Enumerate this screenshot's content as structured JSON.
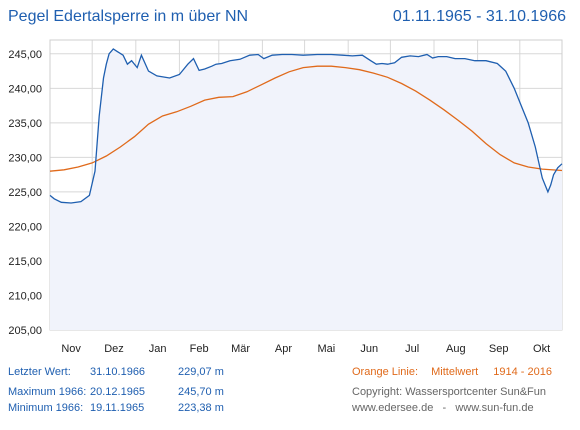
{
  "header": {
    "title": "Pegel Edertalsperre in m über NN",
    "period": "01.11.1965 - 31.10.1966"
  },
  "stats": {
    "last": {
      "label": "Letzter Wert:",
      "date": "31.10.1966",
      "value": "229,07 m"
    },
    "max": {
      "label": "Maximum 1966:",
      "date": "20.12.1965",
      "value": "245,70 m"
    },
    "min": {
      "label": "Minimum  1966:",
      "date": "19.11.1965",
      "value": "223,38 m"
    }
  },
  "legend": {
    "label": "Orange Linie:",
    "text": "Mittelwert",
    "range": "1914 - 2016"
  },
  "copyright": "Copyright: Wassersportcenter Sun&Fun",
  "websites": "www.edersee.de   -   www.sun-fun.de",
  "colors": {
    "level_line": "#1f5fb0",
    "mean_line": "#e06a1b",
    "fill": "#f1f3fb",
    "grid": "#d8d8d8"
  },
  "chart_data": {
    "type": "line",
    "ylim": [
      205,
      247
    ],
    "yticks": [
      "205,00",
      "210,00",
      "215,00",
      "220,00",
      "225,00",
      "230,00",
      "235,00",
      "240,00",
      "245,00"
    ],
    "ytick_values": [
      205,
      210,
      215,
      220,
      225,
      230,
      235,
      240,
      245
    ],
    "months": [
      "Nov",
      "Dez",
      "Jan",
      "Feb",
      "Mär",
      "Apr",
      "Mai",
      "Jun",
      "Jul",
      "Aug",
      "Sep",
      "Okt"
    ],
    "days_in_year": 365,
    "series": [
      {
        "key": "level",
        "day": [
          0,
          3,
          8,
          15,
          22,
          28,
          32,
          35,
          38,
          40,
          42,
          45,
          48,
          52,
          55,
          58,
          62,
          65,
          70,
          76,
          85,
          92,
          98,
          102,
          106,
          110,
          115,
          118,
          122,
          128,
          135,
          142,
          148,
          152,
          158,
          165,
          172,
          180,
          190,
          200,
          208,
          215,
          222,
          228,
          232,
          236,
          240,
          245,
          250,
          256,
          262,
          268,
          272,
          276,
          282,
          288,
          295,
          302,
          310,
          318,
          324,
          330,
          335,
          340,
          345,
          350,
          354,
          356,
          358,
          361,
          364
        ],
        "value": [
          224.5,
          224.0,
          223.5,
          223.4,
          223.6,
          224.5,
          228.0,
          236.0,
          241.5,
          243.5,
          245.0,
          245.7,
          245.3,
          244.8,
          243.5,
          244.0,
          243.0,
          244.8,
          242.5,
          241.8,
          241.5,
          242.0,
          243.5,
          244.3,
          242.6,
          242.8,
          243.2,
          243.5,
          243.6,
          244.0,
          244.2,
          244.8,
          244.9,
          244.3,
          244.8,
          244.9,
          244.9,
          244.8,
          244.9,
          244.9,
          244.8,
          244.7,
          244.8,
          244.0,
          243.5,
          243.6,
          243.5,
          243.7,
          244.5,
          244.7,
          244.6,
          244.9,
          244.4,
          244.6,
          244.6,
          244.3,
          244.3,
          244.0,
          244.0,
          243.6,
          242.5,
          240.0,
          237.5,
          235.0,
          231.5,
          227.0,
          225.0,
          226.0,
          227.5,
          228.5,
          229.07
        ]
      },
      {
        "key": "mean",
        "day": [
          0,
          10,
          20,
          30,
          40,
          50,
          60,
          70,
          80,
          90,
          100,
          110,
          120,
          130,
          140,
          150,
          160,
          170,
          180,
          190,
          200,
          210,
          220,
          230,
          240,
          250,
          260,
          270,
          280,
          290,
          300,
          310,
          320,
          330,
          340,
          350,
          364
        ],
        "value": [
          228.0,
          228.2,
          228.6,
          229.2,
          230.2,
          231.5,
          233.0,
          234.8,
          236.0,
          236.6,
          237.4,
          238.3,
          238.7,
          238.8,
          239.5,
          240.5,
          241.5,
          242.4,
          243.0,
          243.2,
          243.2,
          243.0,
          242.7,
          242.2,
          241.6,
          240.7,
          239.6,
          238.3,
          236.9,
          235.4,
          233.8,
          232.0,
          230.4,
          229.2,
          228.6,
          228.3,
          228.1
        ]
      }
    ]
  }
}
